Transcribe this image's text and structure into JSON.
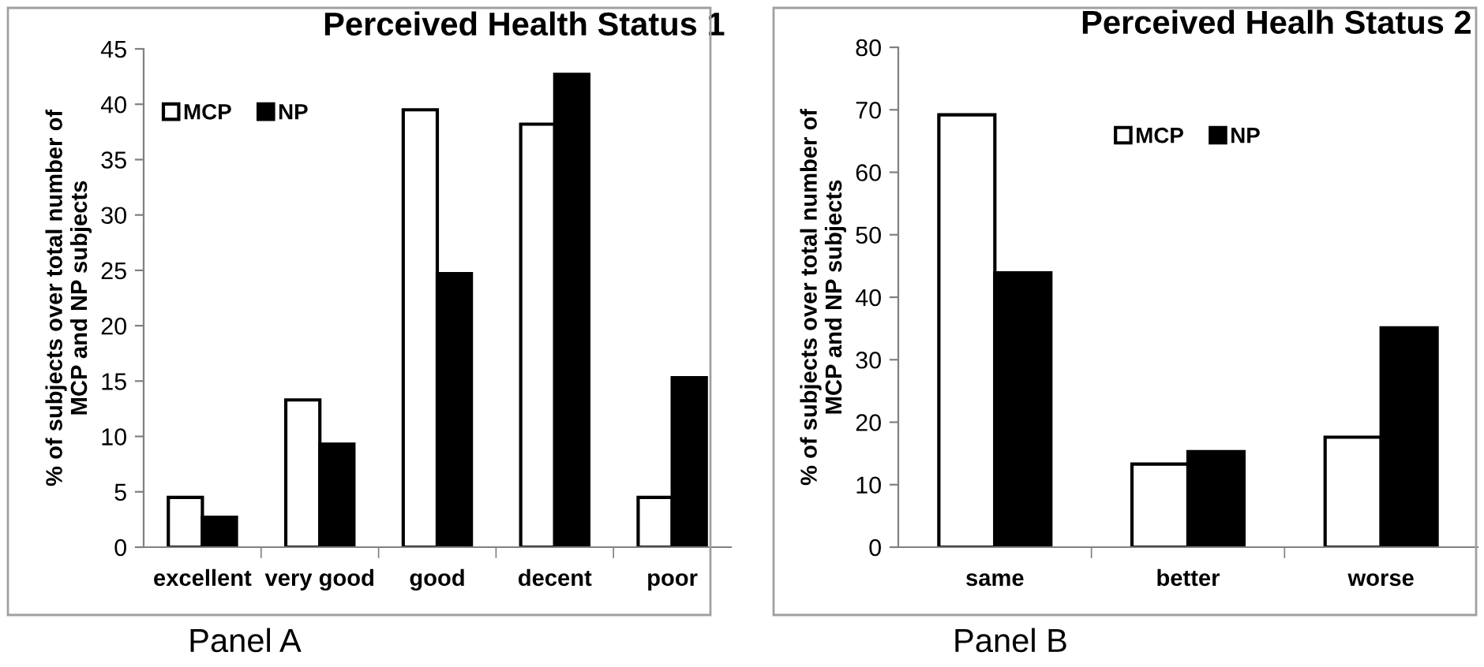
{
  "chart_data": [
    {
      "type": "bar",
      "title": "Perceived Health Status 1",
      "ylabel": "% of subjects over total number of\nMCP and NP subjects",
      "categories": [
        "excellent",
        "very good",
        "good",
        "decent",
        "poor"
      ],
      "series": [
        {
          "name": "MCP",
          "color": "#ffffff",
          "values": [
            4.5,
            13.3,
            39.5,
            38.2,
            4.5
          ]
        },
        {
          "name": "NP",
          "color": "#000000",
          "values": [
            2.7,
            9.3,
            24.7,
            42.7,
            15.3
          ]
        }
      ],
      "ylim": [
        0,
        45
      ],
      "yticks": [
        0,
        5,
        10,
        15,
        20,
        25,
        30,
        35,
        40,
        45
      ],
      "grid": false,
      "legend": "top left",
      "annotations": [
        "Panel A"
      ]
    },
    {
      "type": "bar",
      "title": "Perceived Healh Status 2",
      "ylabel": "% of subjects over total number of\nMCP and NP subjects",
      "categories": [
        "same",
        "better",
        "worse"
      ],
      "series": [
        {
          "name": "MCP",
          "color": "#ffffff",
          "values": [
            69.2,
            13.3,
            17.6
          ]
        },
        {
          "name": "NP",
          "color": "#000000",
          "values": [
            43.9,
            15.3,
            35.1
          ]
        }
      ],
      "ylim": [
        0,
        80
      ],
      "yticks": [
        0,
        10,
        20,
        30,
        40,
        50,
        60,
        70,
        80
      ],
      "grid": false,
      "legend": "top",
      "annotations": [
        "Panel B"
      ]
    }
  ]
}
